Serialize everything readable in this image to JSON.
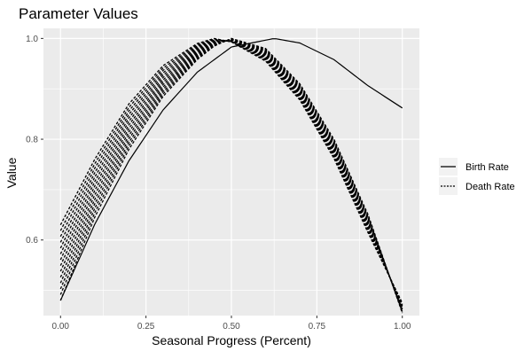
{
  "chart_data": {
    "type": "line",
    "title": "Parameter Values",
    "xlabel": "Seasonal Progress (Percent)",
    "ylabel": "Value",
    "xlim": [
      -0.05,
      1.05
    ],
    "ylim": [
      0.45,
      1.02
    ],
    "x_ticks": [
      0,
      0.25,
      0.5,
      0.75,
      1
    ],
    "x_tick_labels": [
      "0.00",
      "0.25",
      "0.50",
      "0.75",
      "1.00"
    ],
    "y_ticks": [
      0.6,
      0.8,
      1.0
    ],
    "y_tick_labels": [
      "0.6",
      "0.8",
      "1.0"
    ],
    "grid": true,
    "legend_position": "right",
    "series": [
      {
        "name": "Birth Rate",
        "linetype": "solid",
        "color": "#000000",
        "x": [
          0.0,
          0.1,
          0.2,
          0.3,
          0.4,
          0.5,
          0.625,
          0.7,
          0.8,
          0.9,
          1.0
        ],
        "y": [
          0.48,
          0.631,
          0.757,
          0.858,
          0.933,
          0.983,
          1.0,
          0.991,
          0.958,
          0.906,
          0.862
        ]
      },
      {
        "name": "Death Rate",
        "linetype": "dotted",
        "color": "#000000",
        "band": {
          "x": [
            0.0,
            0.1,
            0.2,
            0.3,
            0.4,
            0.45,
            0.5,
            0.6,
            0.7,
            0.8,
            0.9,
            1.0
          ],
          "y_low": [
            0.48,
            0.645,
            0.78,
            0.885,
            0.958,
            0.985,
            1.0,
            0.98,
            0.91,
            0.8,
            0.65,
            0.455
          ],
          "y_high": [
            0.63,
            0.76,
            0.87,
            0.946,
            0.99,
            1.0,
            0.993,
            0.955,
            0.878,
            0.762,
            0.614,
            0.475
          ]
        }
      }
    ]
  }
}
